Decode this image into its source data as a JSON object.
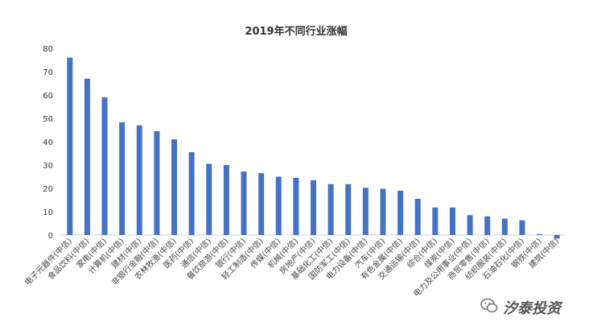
{
  "chart_data": {
    "type": "bar",
    "title": "2019年不同行业涨幅",
    "xlabel": "",
    "ylabel": "",
    "ylim": [
      -3,
      80
    ],
    "yticks": [
      0,
      10,
      20,
      30,
      40,
      50,
      60,
      70,
      80
    ],
    "grid": false,
    "legend": "none",
    "bar_color": "#4472C4",
    "categories": [
      "电子元器件(中信)",
      "食品饮料(中信)",
      "家电(中信)",
      "计算机(中信)",
      "建材(中信)",
      "非银行金融(中信)",
      "农林牧渔(中信)",
      "医药(中信)",
      "通信(中信)",
      "餐饮旅游(中信)",
      "银行(中信)",
      "轻工制造(中信)",
      "传媒(中信)",
      "机械(中信)",
      "房地产(中信)",
      "基础化工(中信)",
      "国防军工(中信)",
      "电力设备(中信)",
      "汽车(中信)",
      "有色金属(中信)",
      "交通运输(中信)",
      "综合(中信)",
      "煤炭(中信)",
      "电力及公用事业(中信)",
      "商贸零售(中信)",
      "纺织服装(中信)",
      "石油石化(中信)",
      "钢铁(中信)",
      "建筑(中信)"
    ],
    "values": [
      76,
      67,
      59,
      48.3,
      47,
      44.5,
      41,
      35.5,
      30.5,
      30,
      27.2,
      26.5,
      25,
      24.5,
      23.5,
      21.8,
      21.8,
      20.2,
      19.8,
      19,
      15.5,
      11.8,
      11.8,
      8.5,
      8,
      7,
      6.3,
      0.4,
      -1.5
    ]
  },
  "watermark": {
    "text": "汐泰投资",
    "icon": "wechat-icon"
  }
}
